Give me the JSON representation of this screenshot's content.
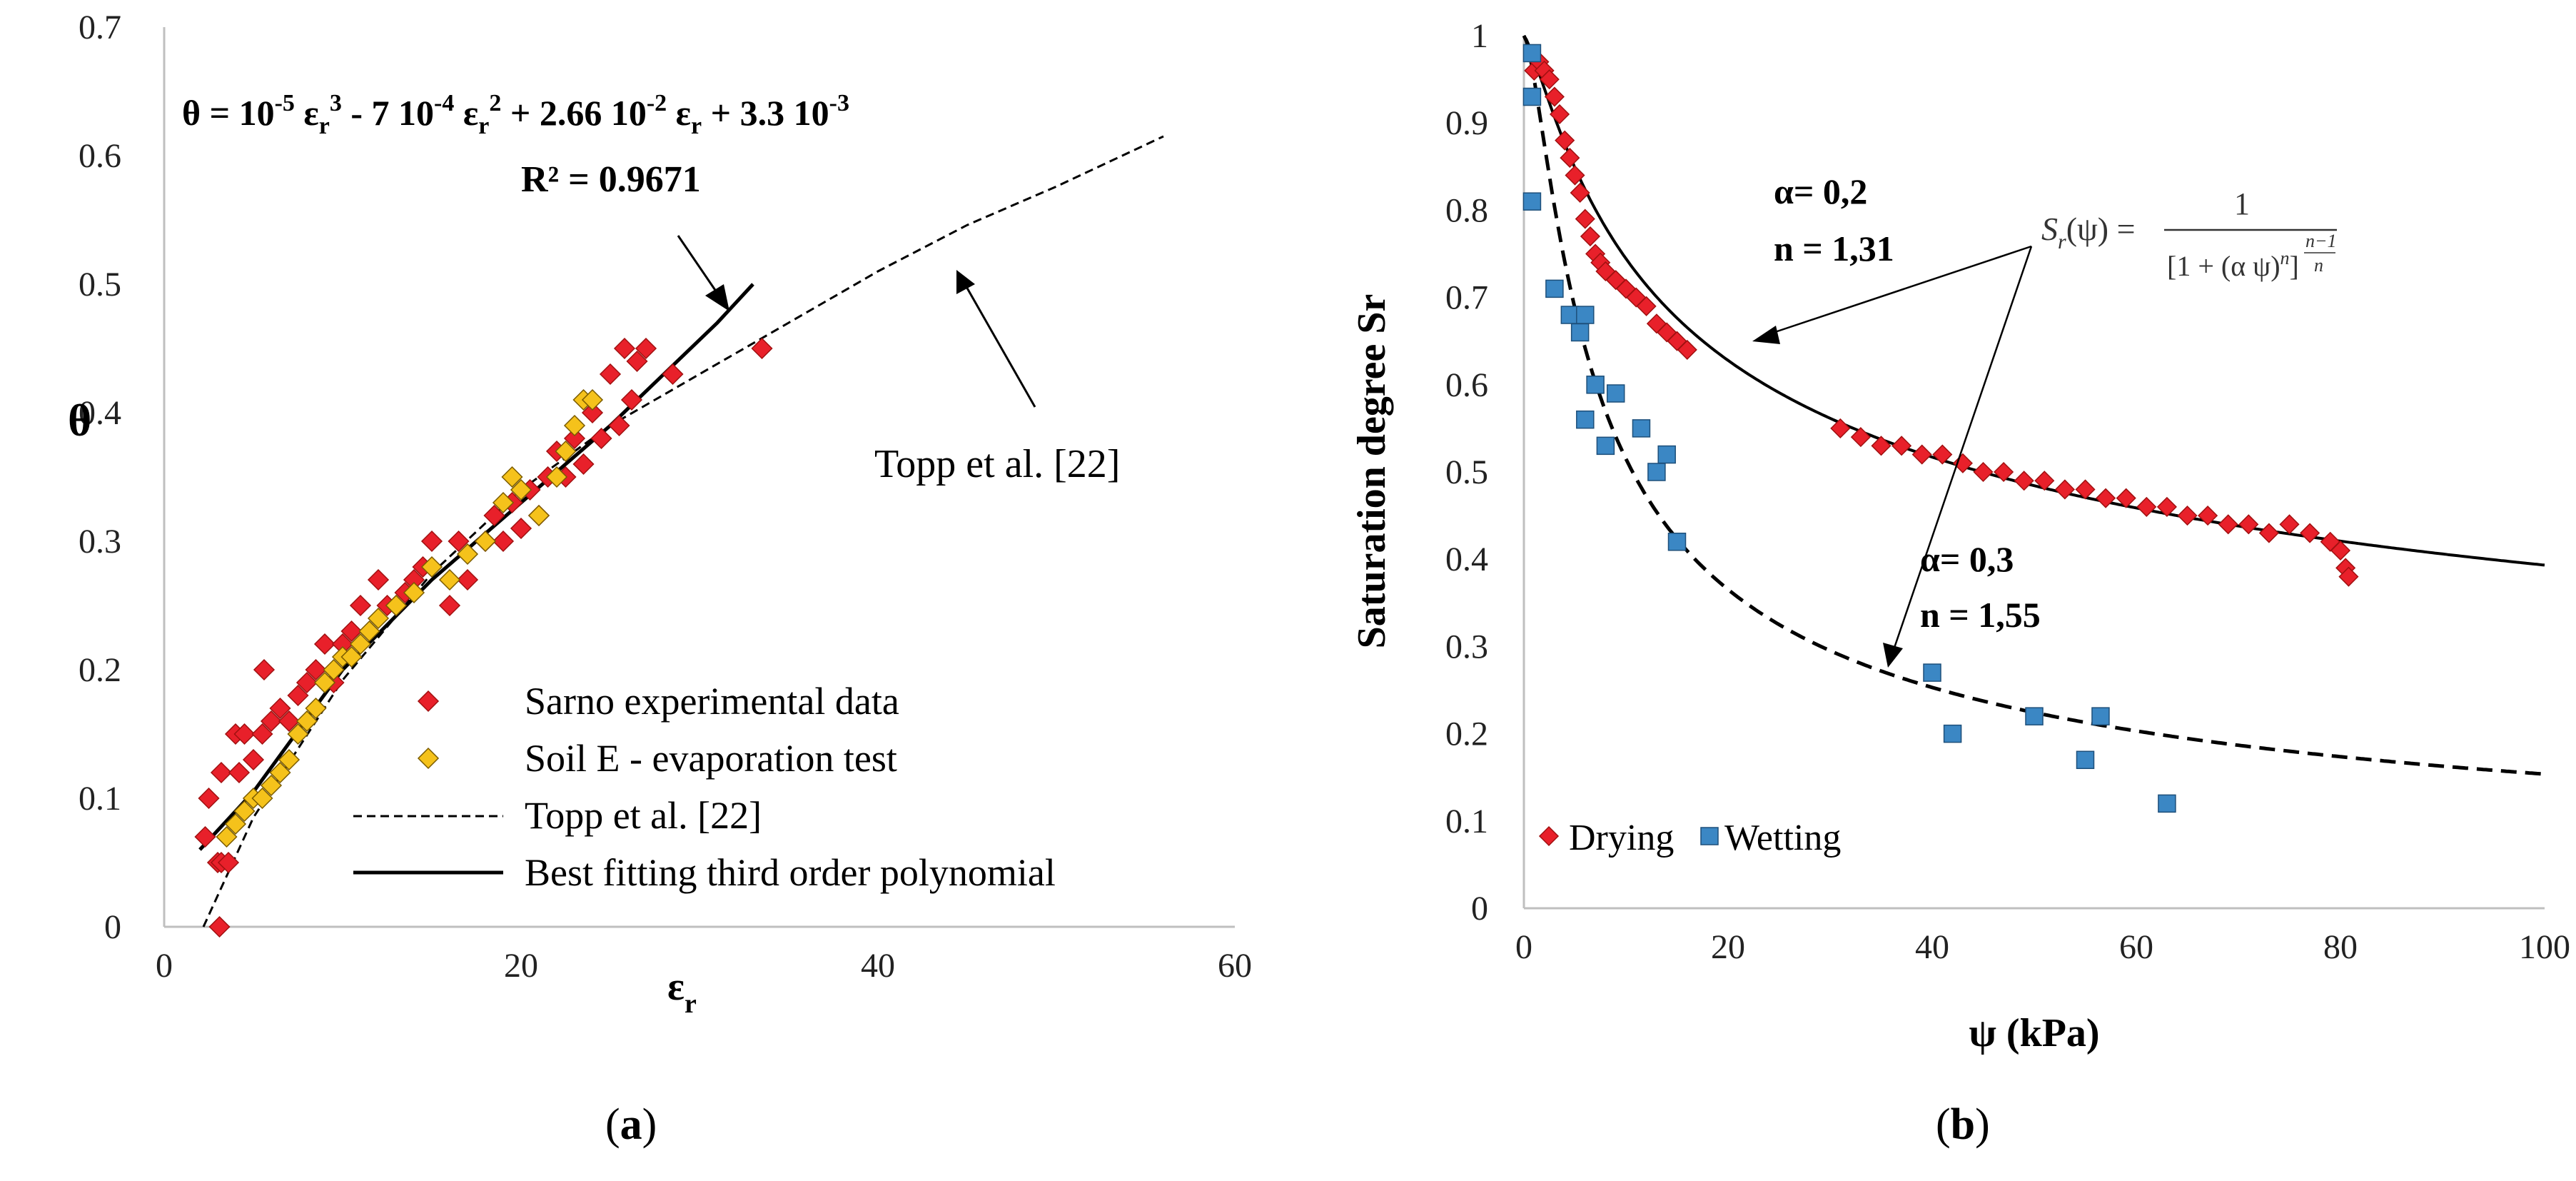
{
  "chart_data": [
    {
      "type": "scatter",
      "panel_label": "(a)",
      "caption_open": "(",
      "caption_letter": "a",
      "caption_close": ")",
      "xlabel": "ε",
      "xlabel_sub": "r",
      "ylabel": "θ",
      "xlim": [
        0,
        60
      ],
      "ylim": [
        0,
        0.7
      ],
      "xticks": [
        "0",
        "20",
        "40",
        "60"
      ],
      "yticks": [
        "0",
        "0.1",
        "0.2",
        "0.3",
        "0.4",
        "0.5",
        "0.6",
        "0.7"
      ],
      "equation_parts": [
        "θ = 10",
        "-5",
        " ε",
        "r",
        "3",
        " - 7 10",
        "-4",
        " ε",
        "r",
        "2",
        " + 2.66 10",
        "-2",
        " ε",
        "r",
        " + 3.3 10",
        "-3"
      ],
      "r_squared": "R² = 0.9671",
      "annotation_topp": "Topp et al. [22]",
      "colors": {
        "sarno": "#e8202a",
        "soilE": "#f5c21b",
        "line": "#000000"
      },
      "legend": [
        {
          "label": "Sarno experimental data",
          "kind": "diamond",
          "color": "#e8202a"
        },
        {
          "label": "Soil E - evaporation test",
          "kind": "diamond",
          "color": "#f5c21b"
        },
        {
          "label": "Topp et al. [22]",
          "kind": "dashed"
        },
        {
          "label": "Best fitting third order polynomial",
          "kind": "solid"
        }
      ],
      "series": [
        {
          "name": "Sarno experimental data",
          "points": [
            [
              2.5,
              0.1
            ],
            [
              2.3,
              0.07
            ],
            [
              3.0,
              0.05
            ],
            [
              3.2,
              0.05
            ],
            [
              3.6,
              0.05
            ],
            [
              3.1,
              0.0
            ],
            [
              3.2,
              0.12
            ],
            [
              4.2,
              0.12
            ],
            [
              4.0,
              0.15
            ],
            [
              4.5,
              0.15
            ],
            [
              5.0,
              0.13
            ],
            [
              5.5,
              0.15
            ],
            [
              5.6,
              0.2
            ],
            [
              6.0,
              0.16
            ],
            [
              6.5,
              0.17
            ],
            [
              7.0,
              0.16
            ],
            [
              7.5,
              0.18
            ],
            [
              8.0,
              0.19
            ],
            [
              8.5,
              0.2
            ],
            [
              9.0,
              0.22
            ],
            [
              9.5,
              0.19
            ],
            [
              10.0,
              0.22
            ],
            [
              10.5,
              0.23
            ],
            [
              11.0,
              0.25
            ],
            [
              12.0,
              0.27
            ],
            [
              12.5,
              0.25
            ],
            [
              13.0,
              0.25
            ],
            [
              13.5,
              0.26
            ],
            [
              14.0,
              0.27
            ],
            [
              14.5,
              0.28
            ],
            [
              15.0,
              0.3
            ],
            [
              16.0,
              0.25
            ],
            [
              16.5,
              0.3
            ],
            [
              17.0,
              0.27
            ],
            [
              18.0,
              0.3
            ],
            [
              18.5,
              0.32
            ],
            [
              19.0,
              0.3
            ],
            [
              19.5,
              0.33
            ],
            [
              20.0,
              0.31
            ],
            [
              20.5,
              0.34
            ],
            [
              21.0,
              0.32
            ],
            [
              21.5,
              0.35
            ],
            [
              22.0,
              0.37
            ],
            [
              22.5,
              0.35
            ],
            [
              23.0,
              0.38
            ],
            [
              23.5,
              0.36
            ],
            [
              24.0,
              0.4
            ],
            [
              24.5,
              0.38
            ],
            [
              25.0,
              0.43
            ],
            [
              25.5,
              0.39
            ],
            [
              25.8,
              0.45
            ],
            [
              26.2,
              0.41
            ],
            [
              26.5,
              0.44
            ],
            [
              27.0,
              0.45
            ],
            [
              28.5,
              0.43
            ],
            [
              33.5,
              0.45
            ]
          ]
        },
        {
          "name": "Soil E - evaporation test",
          "points": [
            [
              3.5,
              0.07
            ],
            [
              4.0,
              0.08
            ],
            [
              4.5,
              0.09
            ],
            [
              5.0,
              0.1
            ],
            [
              5.5,
              0.1
            ],
            [
              6.0,
              0.11
            ],
            [
              6.5,
              0.12
            ],
            [
              7.0,
              0.13
            ],
            [
              7.5,
              0.15
            ],
            [
              8.0,
              0.16
            ],
            [
              8.5,
              0.17
            ],
            [
              9.0,
              0.19
            ],
            [
              9.5,
              0.2
            ],
            [
              10.0,
              0.21
            ],
            [
              10.5,
              0.21
            ],
            [
              11.0,
              0.22
            ],
            [
              11.5,
              0.23
            ],
            [
              12.0,
              0.24
            ],
            [
              13.0,
              0.25
            ],
            [
              14.0,
              0.26
            ],
            [
              15.0,
              0.28
            ],
            [
              16.0,
              0.27
            ],
            [
              17.0,
              0.29
            ],
            [
              18.0,
              0.3
            ],
            [
              19.0,
              0.33
            ],
            [
              19.5,
              0.35
            ],
            [
              20.0,
              0.34
            ],
            [
              21.0,
              0.32
            ],
            [
              22.0,
              0.35
            ],
            [
              22.5,
              0.37
            ],
            [
              23.0,
              0.39
            ],
            [
              23.5,
              0.41
            ],
            [
              24.0,
              0.41
            ]
          ]
        }
      ],
      "topp_curve": [
        [
          2.2,
          0.0
        ],
        [
          5,
          0.085
        ],
        [
          10,
          0.192
        ],
        [
          15,
          0.275
        ],
        [
          20,
          0.34
        ],
        [
          25,
          0.39
        ],
        [
          30,
          0.43
        ],
        [
          35,
          0.47
        ],
        [
          40,
          0.51
        ],
        [
          45,
          0.546
        ],
        [
          50,
          0.576
        ],
        [
          56,
          0.615
        ]
      ],
      "poly_curve": [
        [
          2.0,
          0.06
        ],
        [
          5,
          0.105
        ],
        [
          10,
          0.2
        ],
        [
          15,
          0.27
        ],
        [
          20,
          0.33
        ],
        [
          25,
          0.39
        ],
        [
          28,
          0.43
        ],
        [
          31,
          0.47
        ],
        [
          33,
          0.5
        ]
      ]
    },
    {
      "type": "scatter",
      "panel_label": "(b)",
      "caption_open": "(",
      "caption_letter": "b",
      "caption_close": ")",
      "xlabel": "ψ (kPa)",
      "ylabel": "Saturation degree  Sr",
      "xlim": [
        0,
        100
      ],
      "ylim": [
        0,
        1
      ],
      "xticks": [
        "0",
        "20",
        "40",
        "60",
        "80",
        "100"
      ],
      "yticks": [
        "0",
        "0.1",
        "0.2",
        "0.3",
        "0.4",
        "0.5",
        "0.6",
        "0.7",
        "0.8",
        "0.9",
        "1"
      ],
      "annotations": {
        "alpha_dry": "α= 0,2",
        "n_dry": "n = 1,31",
        "alpha_wet": "α= 0,3",
        "n_wet": "n = 1,55"
      },
      "formula": {
        "lhs": "S",
        "lhs_sub": "r",
        "lhs_rest": "(ψ) =",
        "numerator": "1",
        "denominator": "[1 + (α ψ)",
        "den_exp": "n",
        "den_close": "]",
        "outer_exp_num": "n−1",
        "outer_exp_den": "n"
      },
      "colors": {
        "drying": "#e8202a",
        "wetting": "#3b87c4",
        "line": "#000000"
      },
      "legend": [
        {
          "label": "Drying",
          "kind": "diamond",
          "color": "#e8202a"
        },
        {
          "label": "Wetting",
          "kind": "square",
          "color": "#3b87c4"
        }
      ],
      "series": [
        {
          "name": "Drying",
          "points": [
            [
              1.0,
              0.96
            ],
            [
              1.5,
              0.97
            ],
            [
              2.0,
              0.96
            ],
            [
              2.5,
              0.95
            ],
            [
              3.0,
              0.93
            ],
            [
              3.5,
              0.91
            ],
            [
              4.0,
              0.88
            ],
            [
              4.5,
              0.86
            ],
            [
              5.0,
              0.84
            ],
            [
              5.5,
              0.82
            ],
            [
              6.0,
              0.79
            ],
            [
              6.5,
              0.77
            ],
            [
              7.0,
              0.75
            ],
            [
              7.5,
              0.74
            ],
            [
              8.0,
              0.73
            ],
            [
              9.0,
              0.72
            ],
            [
              10.0,
              0.71
            ],
            [
              11.0,
              0.7
            ],
            [
              12.0,
              0.69
            ],
            [
              13.0,
              0.67
            ],
            [
              14.0,
              0.66
            ],
            [
              15.0,
              0.65
            ],
            [
              16.0,
              0.64
            ],
            [
              31.0,
              0.55
            ],
            [
              33.0,
              0.54
            ],
            [
              35.0,
              0.53
            ],
            [
              37.0,
              0.53
            ],
            [
              39.0,
              0.52
            ],
            [
              41.0,
              0.52
            ],
            [
              43.0,
              0.51
            ],
            [
              45.0,
              0.5
            ],
            [
              47.0,
              0.5
            ],
            [
              49.0,
              0.49
            ],
            [
              51.0,
              0.49
            ],
            [
              53.0,
              0.48
            ],
            [
              55.0,
              0.48
            ],
            [
              57.0,
              0.47
            ],
            [
              59.0,
              0.47
            ],
            [
              61.0,
              0.46
            ],
            [
              63.0,
              0.46
            ],
            [
              65.0,
              0.45
            ],
            [
              67.0,
              0.45
            ],
            [
              69.0,
              0.44
            ],
            [
              71.0,
              0.44
            ],
            [
              73.0,
              0.43
            ],
            [
              75.0,
              0.44
            ],
            [
              77.0,
              0.43
            ],
            [
              79.0,
              0.42
            ],
            [
              80.0,
              0.41
            ],
            [
              80.5,
              0.39
            ],
            [
              80.8,
              0.38
            ]
          ]
        },
        {
          "name": "Wetting",
          "points": [
            [
              0.8,
              0.98
            ],
            [
              0.8,
              0.93
            ],
            [
              0.8,
              0.81
            ],
            [
              3.0,
              0.71
            ],
            [
              4.5,
              0.68
            ],
            [
              5.5,
              0.66
            ],
            [
              6.0,
              0.68
            ],
            [
              6.0,
              0.56
            ],
            [
              7.0,
              0.6
            ],
            [
              8.0,
              0.53
            ],
            [
              9.0,
              0.59
            ],
            [
              11.5,
              0.55
            ],
            [
              13.0,
              0.5
            ],
            [
              14.0,
              0.52
            ],
            [
              15.0,
              0.42
            ],
            [
              40.0,
              0.27
            ],
            [
              42.0,
              0.2
            ],
            [
              50.0,
              0.22
            ],
            [
              55.0,
              0.17
            ],
            [
              56.5,
              0.22
            ],
            [
              63.0,
              0.12
            ]
          ]
        }
      ],
      "curve_drying": {
        "alpha": 0.2,
        "n": 1.31
      },
      "curve_wetting": {
        "alpha": 0.3,
        "n": 1.55
      }
    }
  ]
}
